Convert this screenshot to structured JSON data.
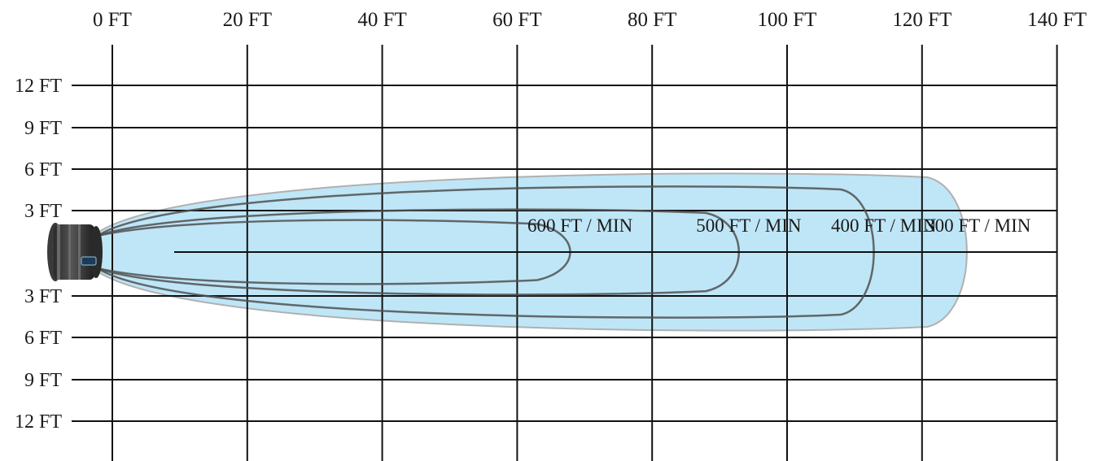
{
  "x_axis": {
    "ticks": [
      {
        "value": 0,
        "label": "0 FT"
      },
      {
        "value": 20,
        "label": "20 FT"
      },
      {
        "value": 40,
        "label": "40 FT"
      },
      {
        "value": 60,
        "label": "60 FT"
      },
      {
        "value": 80,
        "label": "80 FT"
      },
      {
        "value": 100,
        "label": "100 FT"
      },
      {
        "value": 120,
        "label": "120 FT"
      },
      {
        "value": 140,
        "label": "140 FT"
      }
    ]
  },
  "y_axis": {
    "ticks": [
      {
        "value": 12,
        "label": "12 FT"
      },
      {
        "value": 9,
        "label": "9 FT"
      },
      {
        "value": 6,
        "label": "6 FT"
      },
      {
        "value": 3,
        "label": "3 FT"
      },
      {
        "value": -3,
        "label": "3 FT"
      },
      {
        "value": -6,
        "label": "6 FT"
      },
      {
        "value": -9,
        "label": "9 FT"
      },
      {
        "value": -12,
        "label": "12 FT"
      }
    ]
  },
  "zones": [
    {
      "label": "300 FT / MIN",
      "reach": 128,
      "half_width": 6
    },
    {
      "label": "400 FT / MIN",
      "reach": 114,
      "half_width": 5
    },
    {
      "label": "500 FT / MIN",
      "reach": 94,
      "half_width": 3.3
    },
    {
      "label": "600 FT / MIN",
      "reach": 69,
      "half_width": 2.5
    }
  ],
  "colors": {
    "fill": "#bfe6f7",
    "outline": "#b0b0b0",
    "contour": "#505050",
    "grid": "#111111"
  },
  "fan_icon": "air-circulator-fan-icon"
}
